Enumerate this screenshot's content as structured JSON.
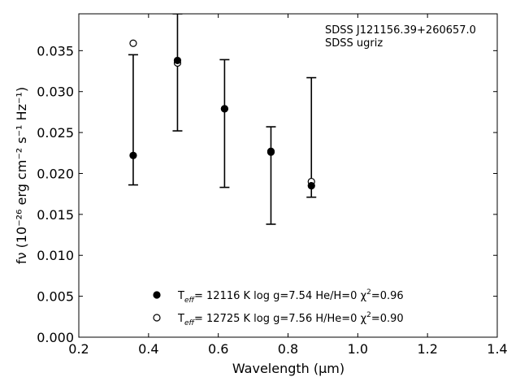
{
  "chart_data": {
    "type": "scatter",
    "xlabel": "Wavelength (μm)",
    "ylabel": "fν (10⁻²⁶ erg cm⁻² s⁻¹ Hz⁻¹)",
    "xlim": [
      0.2,
      1.4
    ],
    "ylim": [
      0.0,
      0.0395
    ],
    "xticks": [
      "0.2",
      "0.4",
      "0.6",
      "0.8",
      "1.0",
      "1.2",
      "1.4"
    ],
    "yticks": [
      "0.000",
      "0.005",
      "0.010",
      "0.015",
      "0.020",
      "0.025",
      "0.030",
      "0.035"
    ],
    "annotations": [
      "SDSS J121156.39+260657.0",
      "SDSS ugriz"
    ],
    "legend_position": "bottom-center",
    "grid": false,
    "observed": {
      "x": [
        0.356,
        0.483,
        0.618,
        0.751,
        0.867
      ],
      "y": [
        0.0222,
        0.0338,
        0.0279,
        0.0226,
        0.0185
      ],
      "err_low": [
        0.0186,
        0.0252,
        0.0183,
        0.0138,
        0.0171
      ],
      "err_high": [
        0.0345,
        0.0395,
        0.0339,
        0.0257,
        0.0317
      ]
    },
    "series": [
      {
        "marker": "filled-circle",
        "label_parts": [
          "T",
          "eff",
          "= 12116 K  log g=7.54  He/H=0  χ",
          "2",
          "=0.96"
        ],
        "x": [
          0.356,
          0.483,
          0.618,
          0.751,
          0.867
        ],
        "y": [
          0.0222,
          0.0338,
          0.0279,
          0.0226,
          0.0185
        ]
      },
      {
        "marker": "open-circle",
        "label_parts": [
          "T",
          "eff",
          "= 12725 K  log g=7.56  H/He=0  χ",
          "2",
          "=0.90"
        ],
        "x": [
          0.356,
          0.483,
          0.618,
          0.751,
          0.867
        ],
        "y": [
          0.0359,
          0.0335,
          0.0279,
          0.0227,
          0.019
        ]
      }
    ]
  }
}
